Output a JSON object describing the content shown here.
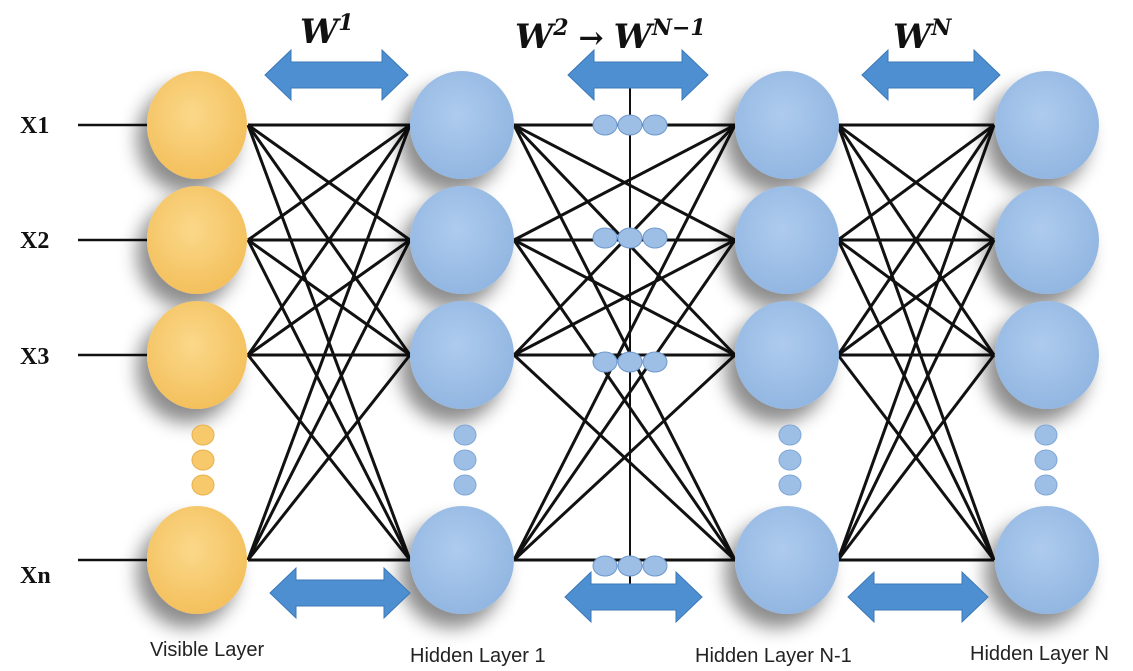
{
  "weights": {
    "w1": {
      "base": "W",
      "sup": "1"
    },
    "w2": {
      "base": "W",
      "sup": "2",
      "arrow": "→",
      "base2": "W",
      "sup2": "N−1"
    },
    "wn": {
      "base": "W",
      "sup": "N"
    }
  },
  "inputs": [
    "X1",
    "X2",
    "X3",
    "Xn"
  ],
  "layers": {
    "visible": "Visible Layer",
    "hidden1": "Hidden Layer 1",
    "hiddenN1": "Hidden Layer N-1",
    "hiddenN": "Hidden Layer N"
  },
  "colors": {
    "visible_node": "#f7c96a",
    "hidden_node": "#9dbfe6",
    "arrow": "#4d8fd1",
    "edge": "#111111"
  }
}
